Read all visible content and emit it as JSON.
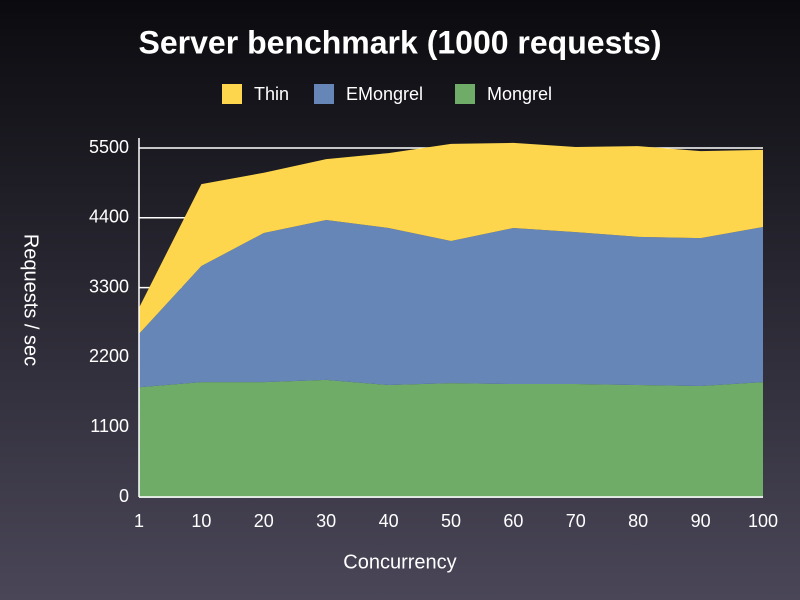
{
  "chart_data": {
    "type": "stacked-area",
    "title": "Server benchmark (1000 requests)",
    "x_label": "Concurrency",
    "y_label": "Requests / sec",
    "categories": [
      "1",
      "10",
      "20",
      "30",
      "40",
      "50",
      "60",
      "70",
      "80",
      "90",
      "100"
    ],
    "series": [
      {
        "name": "Thin",
        "color": "#fdd64d",
        "values": [
          410,
          1290,
          950,
          960,
          1180,
          1530,
          1340,
          1340,
          1430,
          1370,
          1215
        ]
      },
      {
        "name": "EMongrel",
        "color": "#6686b8",
        "values": [
          840,
          1830,
          2350,
          2520,
          2475,
          2240,
          2460,
          2395,
          2335,
          2330,
          2445
        ]
      },
      {
        "name": "Mongrel",
        "color": "#6fac68",
        "values": [
          1730,
          1810,
          1810,
          1845,
          1765,
          1795,
          1780,
          1780,
          1765,
          1750,
          1810
        ]
      }
    ],
    "ylim": [
      0,
      5500
    ],
    "yticks": [
      0,
      1100,
      2200,
      3300,
      4400,
      5500
    ],
    "grid": true,
    "legend": "top"
  }
}
